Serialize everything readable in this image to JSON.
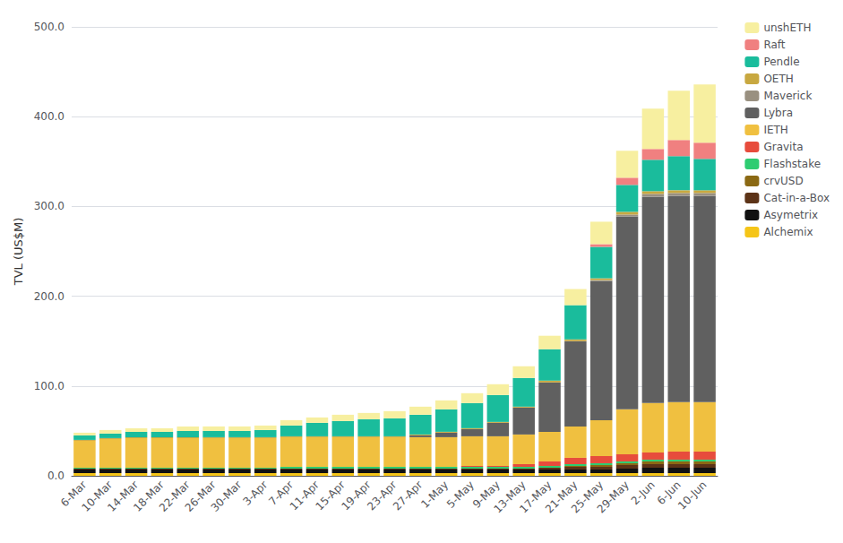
{
  "chart_data": {
    "type": "bar",
    "stacked": true,
    "grid": true,
    "legend": "upper right",
    "ylabel": "TVL (US$M)",
    "categories": [
      "6-Mar",
      "10-Mar",
      "14-Mar",
      "18-Mar",
      "22-Mar",
      "26-Mar",
      "30-Mar",
      "3-Apr",
      "7-Apr",
      "11-Apr",
      "15-Apr",
      "19-Apr",
      "23-Apr",
      "27-Apr",
      "1-May",
      "5-May",
      "9-May",
      "13-May",
      "17-May",
      "21-May",
      "25-May",
      "29-May",
      "2-Jun",
      "6-Jun",
      "10-Jun"
    ],
    "ylim": [
      0,
      500
    ],
    "yticks": [
      {
        "value": 0,
        "label": "0.0"
      },
      {
        "value": 100,
        "label": "100.0"
      },
      {
        "value": 200,
        "label": "200.0"
      },
      {
        "value": 300,
        "label": "300.0"
      },
      {
        "value": 400,
        "label": "400.0"
      },
      {
        "value": 500,
        "label": "500.0"
      }
    ],
    "series": [
      {
        "name": "Alchemix",
        "color": "#F5C518",
        "values": [
          3,
          3,
          3,
          3,
          3,
          3,
          3,
          3,
          3,
          3,
          3,
          3,
          3,
          3,
          3,
          3,
          3,
          3,
          3,
          3,
          3,
          3,
          3,
          3,
          3
        ]
      },
      {
        "name": "Asymetrix",
        "color": "#111111",
        "values": [
          4,
          4,
          4,
          4,
          4,
          4,
          4,
          4,
          4,
          4,
          4,
          4,
          4,
          4,
          4,
          4,
          4,
          4,
          4,
          4,
          4,
          5,
          6,
          6,
          6
        ]
      },
      {
        "name": "Cat-in-a-Box",
        "color": "#5C3317",
        "values": [
          1,
          1,
          1,
          1,
          1,
          1,
          1,
          1,
          1,
          1,
          1,
          1,
          1,
          1,
          1,
          1,
          1,
          1,
          2,
          3,
          3,
          4,
          4,
          4,
          4
        ]
      },
      {
        "name": "crvUSD",
        "color": "#8B6914",
        "values": [
          0,
          0,
          0,
          0,
          0,
          0,
          0,
          0,
          0,
          0,
          0,
          0,
          0,
          0,
          0,
          0,
          0,
          0,
          0,
          1,
          2,
          2,
          3,
          3,
          3
        ]
      },
      {
        "name": "Flashstake",
        "color": "#2ECC71",
        "values": [
          1,
          1,
          1,
          1,
          1,
          1,
          1,
          1,
          2,
          2,
          2,
          2,
          2,
          2,
          2,
          2,
          2,
          2,
          2,
          2,
          2,
          2,
          2,
          2,
          2
        ]
      },
      {
        "name": "Gravita",
        "color": "#E74C3C",
        "values": [
          0,
          0,
          0,
          0,
          0,
          0,
          0,
          0,
          0,
          0,
          0,
          0,
          0,
          0,
          0,
          1,
          1,
          3,
          5,
          7,
          8,
          8,
          8,
          9,
          9
        ]
      },
      {
        "name": "IETH",
        "color": "#F0C040",
        "values": [
          30,
          32,
          33,
          33,
          33,
          33,
          33,
          33,
          33,
          33,
          33,
          33,
          33,
          33,
          33,
          33,
          33,
          33,
          33,
          35,
          40,
          50,
          55,
          55,
          55
        ]
      },
      {
        "name": "Lybra",
        "color": "#606060",
        "values": [
          0,
          0,
          0,
          0,
          0,
          0,
          0,
          0,
          0,
          0,
          0,
          0,
          0,
          2,
          5,
          8,
          15,
          30,
          55,
          95,
          155,
          215,
          230,
          230,
          230
        ]
      },
      {
        "name": "Maverick",
        "color": "#999080",
        "values": [
          0,
          0,
          0,
          0,
          0,
          0,
          0,
          0,
          0,
          0,
          0,
          0,
          0,
          0,
          0,
          0,
          0,
          0,
          0,
          0,
          1,
          2,
          3,
          3,
          3
        ]
      },
      {
        "name": "OETH",
        "color": "#C8A840",
        "values": [
          1,
          1,
          1,
          1,
          1,
          1,
          1,
          1,
          1,
          1,
          1,
          1,
          1,
          1,
          1,
          1,
          1,
          1,
          2,
          2,
          2,
          3,
          3,
          3,
          3
        ]
      },
      {
        "name": "Pendle",
        "color": "#1ABC9C",
        "values": [
          5,
          5,
          6,
          6,
          7,
          7,
          7,
          8,
          12,
          15,
          17,
          19,
          20,
          22,
          25,
          28,
          30,
          32,
          35,
          38,
          35,
          30,
          35,
          38,
          35
        ]
      },
      {
        "name": "Raft",
        "color": "#F08080",
        "values": [
          0,
          0,
          0,
          0,
          0,
          0,
          0,
          0,
          0,
          0,
          0,
          0,
          0,
          0,
          0,
          0,
          0,
          0,
          0,
          0,
          3,
          8,
          12,
          18,
          18
        ]
      },
      {
        "name": "unshETH",
        "color": "#F7EFA0",
        "values": [
          3,
          4,
          4,
          4,
          5,
          5,
          5,
          5,
          6,
          6,
          7,
          7,
          8,
          9,
          10,
          11,
          12,
          13,
          15,
          18,
          25,
          30,
          45,
          55,
          65
        ]
      }
    ]
  }
}
